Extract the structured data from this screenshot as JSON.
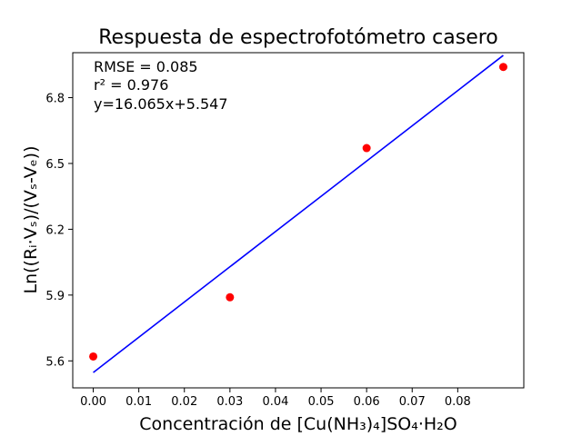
{
  "chart_data": {
    "type": "scatter",
    "title": "Respuesta de espectrofotómetro casero",
    "xlabel": "Concentración de [Cu(NH₃)₄]SO₄·H₂O",
    "ylabel": "Ln((Rᵢ·Vₛ)/(Vₛ-Vₑ))",
    "xlim": [
      -0.0045,
      0.0945
    ],
    "ylim": [
      5.477,
      7.005
    ],
    "xticks": [
      0.0,
      0.01,
      0.02,
      0.03,
      0.04,
      0.05,
      0.06,
      0.07,
      0.08
    ],
    "xtick_labels": [
      "0.00",
      "0.01",
      "0.02",
      "0.03",
      "0.04",
      "0.05",
      "0.06",
      "0.07",
      "0.08"
    ],
    "yticks": [
      5.6,
      5.9,
      6.2,
      6.5,
      6.8
    ],
    "ytick_labels": [
      "5.6",
      "5.9",
      "6.2",
      "6.5",
      "6.8"
    ],
    "grid": false,
    "series": [
      {
        "kind": "scatter",
        "color": "#ff0000",
        "points": [
          {
            "x": 0.0,
            "y": 5.62
          },
          {
            "x": 0.03,
            "y": 5.89
          },
          {
            "x": 0.06,
            "y": 6.57
          },
          {
            "x": 0.09,
            "y": 6.94
          }
        ]
      },
      {
        "kind": "fit-line",
        "color": "#0000ff",
        "slope": 16.065,
        "intercept": 5.547,
        "x_range": [
          0.0,
          0.09
        ]
      }
    ],
    "annotations": {
      "rmse": "RMSE = 0.085",
      "r2": "r² = 0.976",
      "equation": "y=16.065x+5.547"
    }
  }
}
